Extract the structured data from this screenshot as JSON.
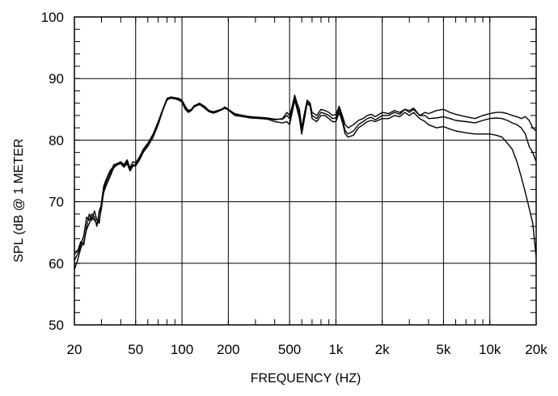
{
  "chart_data": {
    "type": "line",
    "title": "",
    "xlabel": "FREQUENCY  (HZ)",
    "ylabel": "SPL (dB @ 1 METER",
    "x_scale": "log",
    "xlim": [
      20,
      20000
    ],
    "ylim": [
      50,
      100
    ],
    "grid": true,
    "x_major_ticks": [
      20,
      50,
      100,
      200,
      500,
      1000,
      2000,
      5000,
      10000,
      20000
    ],
    "x_tick_labels": [
      "20",
      "50",
      "100",
      "200",
      "500",
      "1k",
      "2k",
      "5k",
      "10k",
      "20k"
    ],
    "y_ticks": [
      50,
      60,
      70,
      80,
      90,
      100
    ],
    "y_tick_labels": [
      "50",
      "60",
      "70",
      "80",
      "90",
      "100"
    ],
    "series": [
      {
        "x": [
          20,
          21,
          22,
          23,
          24,
          25,
          26,
          27,
          28,
          29,
          30,
          31,
          32,
          34,
          36,
          38,
          40,
          42,
          44,
          46,
          48,
          50,
          53,
          56,
          60,
          65,
          70,
          75,
          80,
          85,
          90,
          95,
          100,
          105,
          110,
          115,
          120,
          130,
          140,
          150,
          160,
          170,
          180,
          190,
          200,
          220,
          250,
          280,
          320,
          360,
          400,
          450,
          480,
          500,
          520,
          540,
          560,
          580,
          600,
          620,
          650,
          680,
          700,
          750,
          800,
          850,
          900,
          950,
          1000,
          1050,
          1100,
          1150,
          1200,
          1300,
          1400,
          1500,
          1600,
          1700,
          1800,
          2000,
          2200,
          2400,
          2600,
          2800,
          3000,
          3200,
          3500,
          3800,
          4000,
          4500,
          5000,
          5500,
          6000,
          7000,
          8000,
          9000,
          10000,
          11000,
          12000,
          13000,
          14000,
          15000,
          16000,
          17000,
          18000,
          19000,
          20000
        ],
        "values": [
          60.5,
          61.5,
          63.0,
          64.5,
          67.5,
          67.0,
          68.0,
          67.5,
          66.0,
          68.5,
          69.5,
          72.0,
          73.0,
          74.5,
          76.0,
          76.2,
          76.5,
          76.0,
          76.8,
          75.5,
          76.5,
          76.3,
          77.3,
          78.5,
          79.5,
          81.0,
          83.0,
          85.0,
          86.5,
          87.0,
          86.9,
          86.8,
          86.5,
          85.5,
          84.8,
          85.0,
          85.5,
          86.0,
          85.5,
          84.8,
          84.6,
          84.8,
          85.0,
          85.2,
          85.0,
          84.3,
          84.0,
          83.8,
          83.6,
          83.5,
          83.3,
          83.5,
          84.5,
          84.0,
          85.5,
          87.3,
          86.0,
          85.0,
          82.0,
          84.0,
          86.5,
          86.0,
          84.5,
          84.0,
          85.0,
          84.8,
          84.5,
          84.0,
          84.2,
          85.5,
          84.0,
          82.5,
          82.0,
          82.5,
          83.2,
          83.5,
          84.0,
          84.2,
          83.8,
          84.5,
          84.3,
          84.8,
          84.5,
          85.0,
          84.8,
          85.2,
          84.0,
          84.5,
          84.3,
          84.8,
          85.0,
          84.5,
          84.2,
          83.8,
          83.5,
          84.0,
          84.3,
          84.5,
          84.5,
          84.3,
          84.0,
          83.8,
          83.5,
          83.8,
          83.2,
          82.0,
          81.5
        ]
      },
      {
        "x": [
          20,
          21,
          22,
          23,
          24,
          25,
          26,
          27,
          28,
          29,
          30,
          31,
          32,
          34,
          36,
          38,
          40,
          42,
          44,
          46,
          48,
          50,
          53,
          56,
          60,
          65,
          70,
          75,
          80,
          85,
          90,
          95,
          100,
          105,
          110,
          115,
          120,
          130,
          140,
          150,
          160,
          170,
          180,
          190,
          200,
          220,
          250,
          280,
          320,
          360,
          400,
          450,
          480,
          500,
          520,
          540,
          560,
          580,
          600,
          620,
          650,
          680,
          700,
          750,
          800,
          850,
          900,
          950,
          1000,
          1050,
          1100,
          1150,
          1200,
          1300,
          1400,
          1500,
          1600,
          1700,
          1800,
          2000,
          2200,
          2400,
          2600,
          2800,
          3000,
          3200,
          3500,
          3800,
          4000,
          4500,
          5000,
          5500,
          6000,
          7000,
          8000,
          9000,
          10000,
          11000,
          12000,
          13000,
          14000,
          15000,
          16000,
          17000,
          18000,
          19000,
          20000
        ],
        "values": [
          61.5,
          62.0,
          63.5,
          63.0,
          66.0,
          68.0,
          67.0,
          68.5,
          67.0,
          66.5,
          70.0,
          72.5,
          73.5,
          75.0,
          75.8,
          76.0,
          76.4,
          75.8,
          76.5,
          75.3,
          76.0,
          76.0,
          77.0,
          78.2,
          79.3,
          80.8,
          82.8,
          85.0,
          86.8,
          87.0,
          86.8,
          86.6,
          86.3,
          85.3,
          84.6,
          85.0,
          85.6,
          86.0,
          85.3,
          84.7,
          84.5,
          84.7,
          85.0,
          85.4,
          85.0,
          84.2,
          83.9,
          83.8,
          83.7,
          83.6,
          83.4,
          83.4,
          84.0,
          83.5,
          85.0,
          86.8,
          85.5,
          84.3,
          81.0,
          83.5,
          86.3,
          85.8,
          84.0,
          83.5,
          84.5,
          84.3,
          84.0,
          83.5,
          83.6,
          85.0,
          83.5,
          81.5,
          81.0,
          81.5,
          82.5,
          83.0,
          83.5,
          83.7,
          83.3,
          84.0,
          84.0,
          84.5,
          84.2,
          85.0,
          84.5,
          85.0,
          84.0,
          84.0,
          83.5,
          83.6,
          83.8,
          83.5,
          83.2,
          83.0,
          82.8,
          83.2,
          83.5,
          83.6,
          83.5,
          83.2,
          82.8,
          82.5,
          82.0,
          81.0,
          79.0,
          78.0,
          76.5
        ]
      },
      {
        "x": [
          20,
          21,
          22,
          23,
          24,
          25,
          26,
          27,
          28,
          29,
          30,
          31,
          32,
          34,
          36,
          38,
          40,
          42,
          44,
          46,
          48,
          50,
          53,
          56,
          60,
          65,
          70,
          75,
          80,
          85,
          90,
          95,
          100,
          105,
          110,
          115,
          120,
          130,
          140,
          150,
          160,
          170,
          180,
          190,
          200,
          220,
          250,
          280,
          320,
          360,
          400,
          450,
          480,
          500,
          520,
          540,
          560,
          580,
          600,
          620,
          650,
          680,
          700,
          750,
          800,
          850,
          900,
          950,
          1000,
          1050,
          1100,
          1150,
          1200,
          1300,
          1400,
          1500,
          1600,
          1700,
          1800,
          2000,
          2200,
          2400,
          2600,
          2800,
          3000,
          3200,
          3500,
          3800,
          4000,
          4500,
          5000,
          5500,
          6000,
          7000,
          8000,
          9000,
          10000,
          11000,
          12000,
          13000,
          14000,
          15000,
          16000,
          17000,
          18000,
          19000,
          20000
        ],
        "values": [
          59.0,
          60.5,
          62.5,
          63.5,
          65.5,
          66.5,
          67.5,
          67.0,
          66.5,
          67.0,
          69.0,
          71.5,
          72.5,
          74.0,
          75.5,
          76.0,
          76.2,
          75.6,
          76.2,
          75.0,
          75.8,
          75.8,
          76.8,
          78.0,
          79.0,
          80.5,
          82.5,
          84.8,
          86.6,
          86.8,
          86.7,
          86.5,
          86.2,
          85.0,
          84.5,
          84.8,
          85.4,
          85.8,
          85.2,
          84.6,
          84.4,
          84.6,
          84.9,
          85.2,
          84.9,
          84.0,
          83.8,
          83.6,
          83.5,
          83.4,
          83.0,
          82.8,
          83.0,
          82.5,
          84.5,
          86.5,
          85.0,
          83.5,
          81.0,
          83.0,
          86.0,
          85.5,
          83.5,
          83.0,
          84.0,
          84.0,
          83.5,
          83.0,
          83.0,
          84.5,
          83.0,
          81.0,
          80.5,
          80.8,
          82.0,
          82.5,
          83.0,
          83.2,
          83.0,
          83.5,
          83.5,
          84.0,
          83.8,
          84.5,
          84.0,
          84.5,
          83.5,
          83.0,
          82.5,
          82.0,
          82.2,
          81.8,
          81.5,
          81.2,
          81.0,
          81.0,
          81.0,
          80.8,
          80.5,
          79.5,
          78.5,
          76.5,
          74.0,
          71.5,
          69.0,
          66.5,
          61.0
        ]
      }
    ]
  }
}
